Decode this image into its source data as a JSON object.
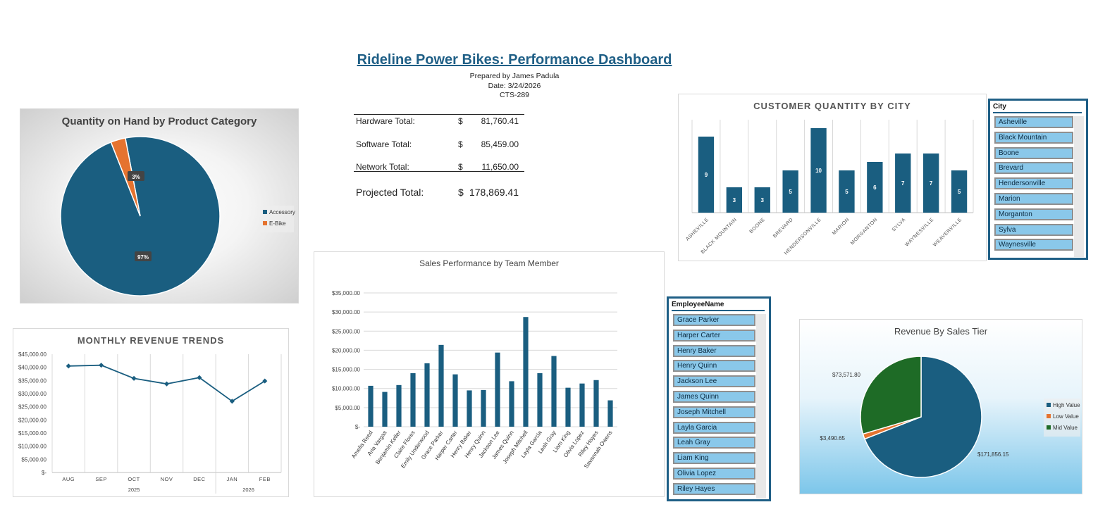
{
  "header": {
    "title": "Rideline Power Bikes: Performance Dashboard",
    "prepared_by": "Prepared by James Padula",
    "date": "Date: 3/24/2026",
    "course": "CTS-289"
  },
  "totals": {
    "rows": [
      {
        "label": "Hardware Total:",
        "currency": "$",
        "amount": "81,760.41"
      },
      {
        "label": "Software Total:",
        "currency": "$",
        "amount": "85,459.00"
      },
      {
        "label": "Network Total:",
        "currency": "$",
        "amount": "11,650.00"
      }
    ],
    "projected": {
      "label": "Projected Total:",
      "currency": "$",
      "amount": "178,869.41"
    }
  },
  "colors": {
    "navy": "#1a5e80",
    "orange": "#e5732f",
    "green": "#1e6b26",
    "slicer_item": "#8ac8ea",
    "title_blue": "#1f5f86"
  },
  "chart_data": [
    {
      "id": "qoh",
      "type": "pie",
      "title": "Quantity on Hand by Product Category",
      "slices": [
        {
          "name": "Accessory",
          "value": 97,
          "label": "97%",
          "color": "#1a5e80"
        },
        {
          "name": "E-Bike",
          "value": 3,
          "label": "3%",
          "color": "#e5732f"
        }
      ],
      "legend": "right"
    },
    {
      "id": "city",
      "type": "bar",
      "title": "CUSTOMER QUANTITY BY CITY",
      "categories": [
        "ASHEVILLE",
        "BLACK MOUNTAIN",
        "BOONE",
        "BREVARD",
        "HENDERSONVILLE",
        "MARION",
        "MORGANTON",
        "SYLVA",
        "WAYNESVILLE",
        "WEAVERVILLE"
      ],
      "values": [
        9,
        3,
        3,
        5,
        10,
        5,
        6,
        7,
        7,
        5
      ],
      "ylim": [
        0,
        11
      ],
      "grid": "vertical"
    },
    {
      "id": "sales",
      "type": "bar",
      "title": "Sales Performance by Team Member",
      "categories": [
        "Amelia Reed",
        "Aria Vargas",
        "Benjamin Keller",
        "Claire Flores",
        "Emily Underwood",
        "Grace Parker",
        "Harper Carter",
        "Henry Baker",
        "Henry Quinn",
        "Jackson Lee",
        "James Quinn",
        "Joseph Mitchell",
        "Layla Garcia",
        "Leah Gray",
        "Liam King",
        "Olivia Lopez",
        "Riley Hayes",
        "Savannah Owens"
      ],
      "values": [
        10700,
        9100,
        10900,
        14000,
        16600,
        21400,
        13700,
        9500,
        9600,
        19400,
        11900,
        28700,
        14000,
        18500,
        10200,
        11300,
        12200,
        6900
      ],
      "yticks": [
        "$-",
        "$5,000.00",
        "$10,000.00",
        "$15,000.00",
        "$20,000.00",
        "$25,000.00",
        "$30,000.00",
        "$35,000.00"
      ],
      "ylim": [
        0,
        35000
      ],
      "grid": "horizontal"
    },
    {
      "id": "monthly",
      "type": "line",
      "title": "MONTHLY REVENUE TRENDS",
      "categories": [
        "AUG",
        "SEP",
        "OCT",
        "NOV",
        "DEC",
        "JAN",
        "FEB"
      ],
      "groups": [
        {
          "label": "2025",
          "span": 5
        },
        {
          "label": "2026",
          "span": 2
        }
      ],
      "values": [
        40500,
        40800,
        35800,
        33700,
        36100,
        27100,
        34800
      ],
      "yticks": [
        "$-",
        "$5,000.00",
        "$10,000.00",
        "$15,000.00",
        "$20,000.00",
        "$25,000.00",
        "$30,000.00",
        "$35,000.00",
        "$40,000.00",
        "$45,000.00"
      ],
      "ylim": [
        0,
        45000
      ],
      "grid": "vertical"
    },
    {
      "id": "tier",
      "type": "pie",
      "title": "Revenue By Sales Tier",
      "slices": [
        {
          "name": "High Value",
          "value": 171856.15,
          "label": "$171,856.15",
          "color": "#1a5e80"
        },
        {
          "name": "Low Value",
          "value": 3490.65,
          "label": "$3,490.65",
          "color": "#e5732f"
        },
        {
          "name": "Mid Value",
          "value": 73571.8,
          "label": "$73,571.80",
          "color": "#1e6b26"
        }
      ],
      "legend": "right"
    }
  ],
  "city_slicer": {
    "header": "City",
    "items": [
      "Asheville",
      "Black Mountain",
      "Boone",
      "Brevard",
      "Hendersonville",
      "Marion",
      "Morganton",
      "Sylva",
      "Waynesville"
    ]
  },
  "employee_slicer": {
    "header": "EmployeeName",
    "items": [
      "Grace Parker",
      "Harper Carter",
      "Henry Baker",
      "Henry Quinn",
      "Jackson Lee",
      "James Quinn",
      "Joseph Mitchell",
      "Layla Garcia",
      "Leah Gray",
      "Liam King",
      "Olivia Lopez",
      "Riley Hayes"
    ]
  }
}
